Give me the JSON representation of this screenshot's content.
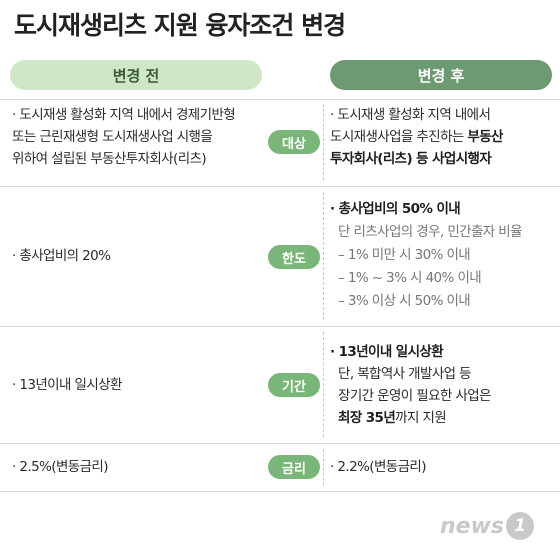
{
  "title": "도시재생리츠 지원 융자조건 변경",
  "headers": {
    "before": "변경 전",
    "after": "변경 후"
  },
  "rows": [
    {
      "tag": "대상",
      "before": [
        "· 도시재생 활성화 지역 내에서 경제기반형",
        "또는 근린재생형 도시재생사업 시행을",
        "위하여 설립된 부동산투자회사(리츠)"
      ],
      "after_lines": [
        {
          "parts": [
            "· 도시재생 활성화 지역 내에서"
          ]
        },
        {
          "parts": [
            "도시재생사업을 추진하는 ",
            "부동산"
          ]
        },
        {
          "parts": [
            "투자회사(리츠) 등 사업시행자"
          ]
        }
      ]
    },
    {
      "tag": "한도",
      "before": [
        "· 총사업비의 20%"
      ],
      "after_lines": [
        {
          "parts": [
            "· 총사업비의 50% 이내"
          ]
        },
        {
          "parts": [
            "단 리츠사업의 경우, 민간출자 비율"
          ]
        },
        {
          "parts": [
            "– 1% 미만 시 30% 이내"
          ]
        },
        {
          "parts": [
            "– 1% ~ 3% 시 40% 이내"
          ]
        },
        {
          "parts": [
            "– 3% 이상 시 50% 이내"
          ]
        }
      ]
    },
    {
      "tag": "기간",
      "before": [
        "· 13년이내 일시상환"
      ],
      "after_lines": [
        {
          "parts": [
            "· 13년이내 일시상환"
          ]
        },
        {
          "parts": [
            "단, 복합역사 개발사업 등"
          ]
        },
        {
          "parts": [
            "장기간 운영이 필요한 사업은"
          ]
        },
        {
          "parts": [
            "최장 35년",
            "까지 지원"
          ]
        }
      ]
    },
    {
      "tag": "금리",
      "before": [
        "· 2.5%(변동금리)"
      ],
      "after_lines": [
        {
          "parts": [
            "· 2.2%(변동금리)"
          ]
        }
      ]
    }
  ],
  "logo": {
    "word": "news",
    "mark": "1"
  },
  "colors": {
    "pill_before": "#cfe7c8",
    "pill_after": "#6e9a72",
    "tag": "#7ab67a"
  }
}
